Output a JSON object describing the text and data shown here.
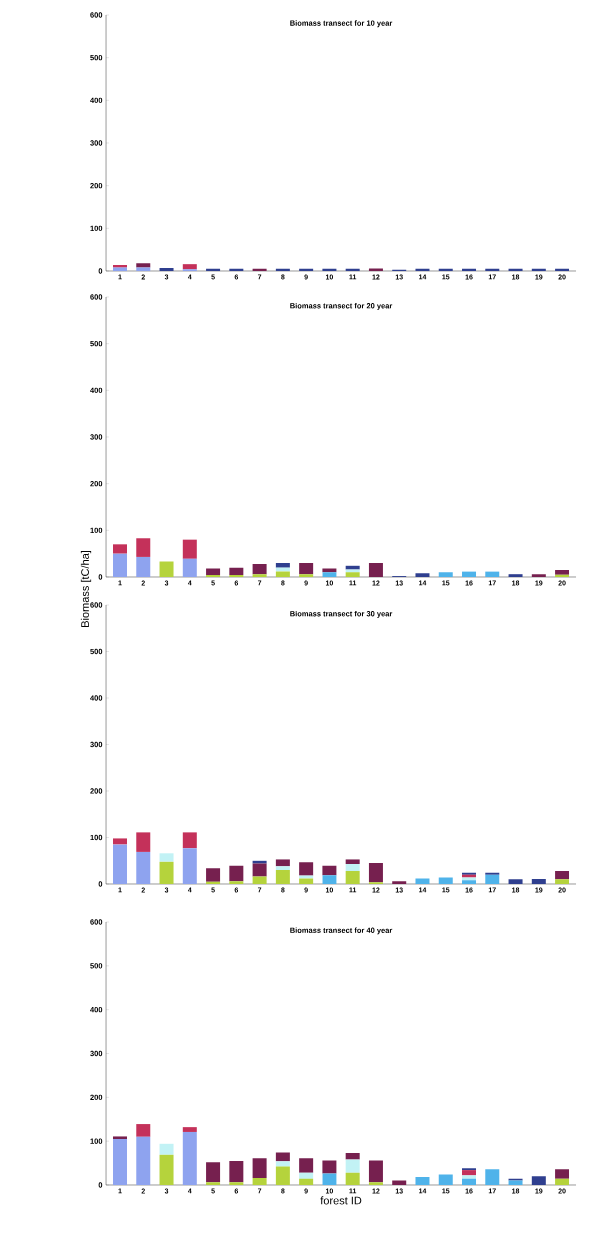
{
  "chart_data": [
    {
      "type": "bar",
      "stacked": true,
      "title": "Biomass transect for 10 year",
      "categories": [
        "1",
        "2",
        "3",
        "4",
        "5",
        "6",
        "7",
        "8",
        "9",
        "10",
        "11",
        "12",
        "13",
        "14",
        "15",
        "16",
        "17",
        "18",
        "19",
        "20"
      ],
      "ylim": [
        0,
        600
      ],
      "yticks": [
        0,
        100,
        200,
        300,
        400,
        500,
        600
      ],
      "series": [
        {
          "color": "#8ea3ef",
          "values": [
            8,
            8,
            null,
            4,
            null,
            null,
            null,
            null,
            null,
            null,
            null,
            null,
            null,
            null,
            null,
            null,
            null,
            null,
            null,
            null
          ]
        },
        {
          "color": "#b5d33c",
          "values": [
            null,
            null,
            null,
            null,
            null,
            null,
            null,
            null,
            null,
            null,
            null,
            null,
            null,
            null,
            null,
            null,
            null,
            null,
            null,
            null
          ]
        },
        {
          "color": "#4fb3ea",
          "values": [
            null,
            null,
            null,
            null,
            null,
            null,
            null,
            null,
            null,
            null,
            null,
            null,
            null,
            null,
            null,
            null,
            null,
            null,
            null,
            null
          ]
        },
        {
          "color": "#c2f2f5",
          "values": [
            null,
            null,
            null,
            null,
            null,
            null,
            null,
            null,
            null,
            null,
            null,
            null,
            null,
            null,
            null,
            null,
            null,
            null,
            null,
            null
          ]
        },
        {
          "color": "#c4315a",
          "values": [
            6,
            null,
            null,
            12,
            null,
            null,
            null,
            null,
            null,
            null,
            null,
            null,
            null,
            null,
            null,
            null,
            null,
            null,
            null,
            null
          ]
        },
        {
          "color": "#76204f",
          "values": [
            null,
            10,
            null,
            null,
            null,
            null,
            5,
            null,
            null,
            null,
            null,
            6,
            null,
            null,
            null,
            null,
            null,
            null,
            null,
            null
          ]
        },
        {
          "color": "#2f3f8f",
          "values": [
            null,
            null,
            7,
            null,
            5,
            5,
            null,
            5,
            5,
            5,
            5,
            null,
            3,
            5,
            5,
            5,
            5,
            5,
            5,
            5
          ]
        }
      ]
    },
    {
      "type": "bar",
      "stacked": true,
      "title": "Biomass transect for 20 year",
      "ylabel": "Biomass [tC/ha]",
      "categories": [
        "1",
        "2",
        "3",
        "4",
        "5",
        "6",
        "7",
        "8",
        "9",
        "10",
        "11",
        "12",
        "13",
        "14",
        "15",
        "16",
        "17",
        "18",
        "19",
        "20"
      ],
      "ylim": [
        0,
        600
      ],
      "yticks": [
        0,
        100,
        200,
        300,
        400,
        500,
        600
      ],
      "series": [
        {
          "color": "#8ea3ef",
          "values": [
            50,
            43,
            null,
            39,
            null,
            null,
            null,
            null,
            null,
            null,
            null,
            null,
            null,
            null,
            null,
            null,
            null,
            null,
            null,
            null
          ]
        },
        {
          "color": "#b5d33c",
          "values": [
            null,
            null,
            33,
            null,
            4,
            4,
            6,
            12,
            6,
            null,
            10,
            null,
            null,
            null,
            null,
            null,
            null,
            null,
            null,
            5
          ]
        },
        {
          "color": "#4fb3ea",
          "values": [
            null,
            null,
            null,
            null,
            null,
            null,
            null,
            null,
            null,
            10,
            null,
            null,
            null,
            null,
            10,
            12,
            12,
            null,
            null,
            null
          ]
        },
        {
          "color": "#c2f2f5",
          "values": [
            null,
            null,
            null,
            null,
            null,
            null,
            null,
            8,
            null,
            null,
            6,
            null,
            null,
            null,
            null,
            null,
            null,
            null,
            null,
            null
          ]
        },
        {
          "color": "#c4315a",
          "values": [
            20,
            40,
            null,
            41,
            null,
            null,
            null,
            null,
            null,
            null,
            null,
            null,
            null,
            null,
            null,
            null,
            null,
            null,
            null,
            null
          ]
        },
        {
          "color": "#76204f",
          "values": [
            null,
            null,
            null,
            null,
            14,
            16,
            22,
            null,
            24,
            8,
            null,
            30,
            null,
            null,
            null,
            null,
            null,
            null,
            6,
            10
          ]
        },
        {
          "color": "#2f3f8f",
          "values": [
            null,
            null,
            null,
            null,
            null,
            null,
            null,
            10,
            null,
            null,
            8,
            null,
            2,
            8,
            null,
            null,
            null,
            6,
            null,
            null
          ]
        }
      ]
    },
    {
      "type": "bar",
      "stacked": true,
      "title": "Biomass transect for 30 year",
      "categories": [
        "1",
        "2",
        "3",
        "4",
        "5",
        "6",
        "7",
        "8",
        "9",
        "10",
        "11",
        "12",
        "13",
        "14",
        "15",
        "16",
        "17",
        "18",
        "19",
        "20"
      ],
      "ylim": [
        0,
        600
      ],
      "yticks": [
        0,
        100,
        200,
        300,
        400,
        500,
        600
      ],
      "series": [
        {
          "color": "#8ea3ef",
          "values": [
            85,
            69,
            null,
            77,
            null,
            null,
            null,
            null,
            null,
            null,
            null,
            null,
            null,
            null,
            null,
            null,
            null,
            null,
            null,
            null
          ]
        },
        {
          "color": "#b5d33c",
          "values": [
            null,
            null,
            48,
            null,
            5,
            6,
            16,
            30,
            12,
            null,
            28,
            4,
            null,
            null,
            null,
            null,
            null,
            null,
            null,
            10
          ]
        },
        {
          "color": "#4fb3ea",
          "values": [
            null,
            null,
            null,
            null,
            null,
            null,
            null,
            null,
            null,
            19,
            null,
            null,
            null,
            12,
            14,
            8,
            20,
            null,
            null,
            null
          ]
        },
        {
          "color": "#c2f2f5",
          "values": [
            null,
            null,
            18,
            null,
            null,
            null,
            null,
            8,
            6,
            null,
            15,
            null,
            null,
            null,
            null,
            6,
            null,
            null,
            null,
            null
          ]
        },
        {
          "color": "#c4315a",
          "values": [
            13,
            42,
            null,
            34,
            null,
            null,
            null,
            null,
            null,
            null,
            null,
            null,
            null,
            null,
            null,
            6,
            null,
            null,
            null,
            null
          ]
        },
        {
          "color": "#76204f",
          "values": [
            null,
            null,
            null,
            null,
            29,
            33,
            28,
            15,
            29,
            20,
            10,
            41,
            6,
            null,
            null,
            null,
            null,
            null,
            null,
            18
          ]
        },
        {
          "color": "#2f3f8f",
          "values": [
            null,
            null,
            null,
            null,
            null,
            null,
            6,
            null,
            null,
            null,
            null,
            null,
            null,
            null,
            null,
            4,
            4,
            10,
            11,
            null
          ]
        }
      ]
    },
    {
      "type": "bar",
      "stacked": true,
      "title": "Biomass transect for 40 year",
      "xlabel": "forest  ID",
      "categories": [
        "1",
        "2",
        "3",
        "4",
        "5",
        "6",
        "7",
        "8",
        "9",
        "10",
        "11",
        "12",
        "13",
        "14",
        "15",
        "16",
        "17",
        "18",
        "19",
        "20"
      ],
      "ylim": [
        0,
        600
      ],
      "yticks": [
        0,
        100,
        200,
        300,
        400,
        500,
        600
      ],
      "series": [
        {
          "color": "#8ea3ef",
          "values": [
            105,
            110,
            null,
            121,
            null,
            null,
            null,
            null,
            null,
            null,
            null,
            null,
            null,
            null,
            null,
            null,
            null,
            null,
            null,
            null
          ]
        },
        {
          "color": "#b5d33c",
          "values": [
            null,
            null,
            69,
            null,
            6,
            6,
            16,
            42,
            14,
            null,
            28,
            6,
            null,
            null,
            null,
            null,
            null,
            null,
            null,
            14
          ]
        },
        {
          "color": "#4fb3ea",
          "values": [
            null,
            null,
            null,
            null,
            null,
            null,
            null,
            null,
            null,
            26,
            null,
            null,
            null,
            18,
            24,
            14,
            36,
            10,
            null,
            null
          ]
        },
        {
          "color": "#c2f2f5",
          "values": [
            null,
            null,
            25,
            null,
            null,
            null,
            null,
            12,
            14,
            null,
            30,
            null,
            null,
            null,
            null,
            8,
            null,
            null,
            null,
            null
          ]
        },
        {
          "color": "#c4315a",
          "values": [
            null,
            29,
            null,
            11,
            null,
            null,
            null,
            null,
            null,
            null,
            null,
            null,
            null,
            null,
            null,
            12,
            null,
            null,
            null,
            null
          ]
        },
        {
          "color": "#76204f",
          "values": [
            6,
            null,
            null,
            null,
            46,
            49,
            45,
            20,
            33,
            30,
            15,
            50,
            10,
            null,
            null,
            null,
            null,
            null,
            null,
            22
          ]
        },
        {
          "color": "#2f3f8f",
          "values": [
            null,
            null,
            null,
            null,
            null,
            null,
            null,
            null,
            null,
            null,
            null,
            null,
            null,
            null,
            null,
            4,
            null,
            4,
            20,
            null
          ]
        }
      ]
    }
  ]
}
